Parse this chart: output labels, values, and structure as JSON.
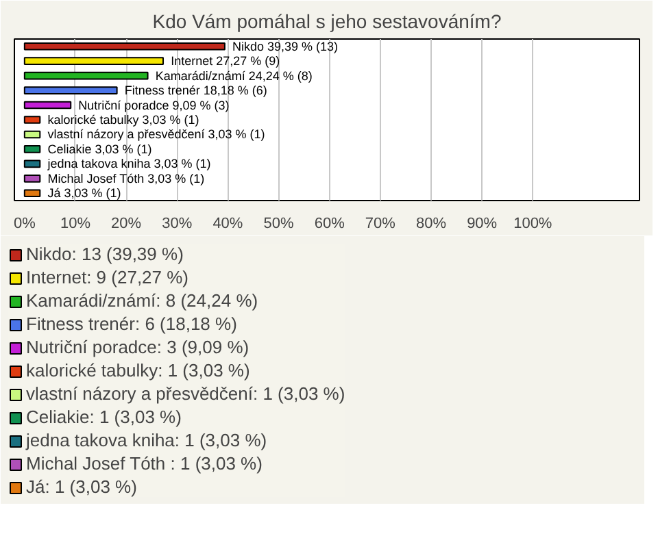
{
  "chart_data": {
    "type": "bar",
    "orientation": "horizontal",
    "title": "Kdo Vám pomáhal s jeho sestavováním?",
    "categories": [
      null,
      null,
      null,
      null,
      null,
      null,
      null,
      null,
      null,
      null,
      null
    ],
    "xlim": [
      -2,
      121
    ],
    "xticks": [
      {
        "value": 0,
        "label": "0%"
      },
      {
        "value": 10,
        "label": "10%"
      },
      {
        "value": 20,
        "label": "20%"
      },
      {
        "value": 30,
        "label": "30%"
      },
      {
        "value": 40,
        "label": "40%"
      },
      {
        "value": 50,
        "label": "50%"
      },
      {
        "value": 60,
        "label": "60%"
      },
      {
        "value": 70,
        "label": "70%"
      },
      {
        "value": 80,
        "label": "80%"
      },
      {
        "value": 90,
        "label": "90%"
      },
      {
        "value": 100,
        "label": "100%"
      }
    ],
    "grid": "x",
    "legend": "bottom",
    "series": [
      {
        "name": "Nikdo: 13 (39,39 %)",
        "color": "#c0281c",
        "values": [
          39.39,
          null,
          null,
          null,
          null,
          null,
          null,
          null,
          null,
          null,
          null
        ],
        "value_labels": [
          "Nikdo 39,39 % (13)",
          null,
          null,
          null,
          null,
          null,
          null,
          null,
          null,
          null,
          null
        ]
      },
      {
        "name": "Internet: 9 (27,27 %)",
        "color": "#f5e600",
        "values": [
          null,
          27.27,
          null,
          null,
          null,
          null,
          null,
          null,
          null,
          null,
          null
        ],
        "value_labels": [
          null,
          "Internet 27,27 % (9)",
          null,
          null,
          null,
          null,
          null,
          null,
          null,
          null,
          null
        ]
      },
      {
        "name": "Kamarádi/známí: 8 (24,24 %)",
        "color": "#22b422",
        "values": [
          null,
          null,
          24.24,
          null,
          null,
          null,
          null,
          null,
          null,
          null,
          null
        ],
        "value_labels": [
          null,
          null,
          "Kamarádi/známí 24,24 % (8)",
          null,
          null,
          null,
          null,
          null,
          null,
          null,
          null
        ]
      },
      {
        "name": "Fitness trenér: 6 (18,18 %)",
        "color": "#4a74e8",
        "values": [
          null,
          null,
          null,
          18.18,
          null,
          null,
          null,
          null,
          null,
          null,
          null
        ],
        "value_labels": [
          null,
          null,
          null,
          "Fitness trenér 18,18 % (6)",
          null,
          null,
          null,
          null,
          null,
          null,
          null
        ]
      },
      {
        "name": "Nutriční poradce: 3 (9,09 %)",
        "color": "#c31fd6",
        "values": [
          null,
          null,
          null,
          null,
          9.09,
          null,
          null,
          null,
          null,
          null,
          null
        ],
        "value_labels": [
          null,
          null,
          null,
          null,
          "Nutriční poradce 9,09 % (3)",
          null,
          null,
          null,
          null,
          null,
          null
        ]
      },
      {
        "name": "kalorické tabulky: 1 (3,03 %)",
        "color": "#e03c10",
        "values": [
          null,
          null,
          null,
          null,
          null,
          3.03,
          null,
          null,
          null,
          null,
          null
        ],
        "value_labels": [
          null,
          null,
          null,
          null,
          null,
          "kalorické tabulky 3,03 % (1)",
          null,
          null,
          null,
          null,
          null
        ]
      },
      {
        "name": "vlastní názory a přesvědčení: 1 (3,03 %)",
        "color": "#c8f880",
        "values": [
          null,
          null,
          null,
          null,
          null,
          null,
          3.03,
          null,
          null,
          null,
          null
        ],
        "value_labels": [
          null,
          null,
          null,
          null,
          null,
          null,
          "vlastní názory a přesvědčení 3,03 % (1)",
          null,
          null,
          null,
          null
        ]
      },
      {
        "name": "Celiakie: 1 (3,03 %)",
        "color": "#109050",
        "values": [
          null,
          null,
          null,
          null,
          null,
          null,
          null,
          3.03,
          null,
          null,
          null
        ],
        "value_labels": [
          null,
          null,
          null,
          null,
          null,
          null,
          null,
          "Celiakie 3,03 % (1)",
          null,
          null,
          null
        ]
      },
      {
        "name": "jedna takova kniha: 1 (3,03 %)",
        "color": "#1a7080",
        "values": [
          null,
          null,
          null,
          null,
          null,
          null,
          null,
          null,
          3.03,
          null,
          null
        ],
        "value_labels": [
          null,
          null,
          null,
          null,
          null,
          null,
          null,
          null,
          "jedna takova kniha 3,03 % (1)",
          null,
          null
        ]
      },
      {
        "name": "Michal Josef Tóth : 1 (3,03 %)",
        "color": "#b050b8",
        "values": [
          null,
          null,
          null,
          null,
          null,
          null,
          null,
          null,
          null,
          3.03,
          null
        ],
        "value_labels": [
          null,
          null,
          null,
          null,
          null,
          null,
          null,
          null,
          null,
          "Michal Josef Tóth  3,03 % (1)",
          null
        ]
      },
      {
        "name": "Já: 1 (3,03 %)",
        "color": "#e07810",
        "values": [
          null,
          null,
          null,
          null,
          null,
          null,
          null,
          null,
          null,
          null,
          3.03
        ],
        "value_labels": [
          null,
          null,
          null,
          null,
          null,
          null,
          null,
          null,
          null,
          null,
          "Já 3,03 % (1)"
        ]
      }
    ]
  }
}
